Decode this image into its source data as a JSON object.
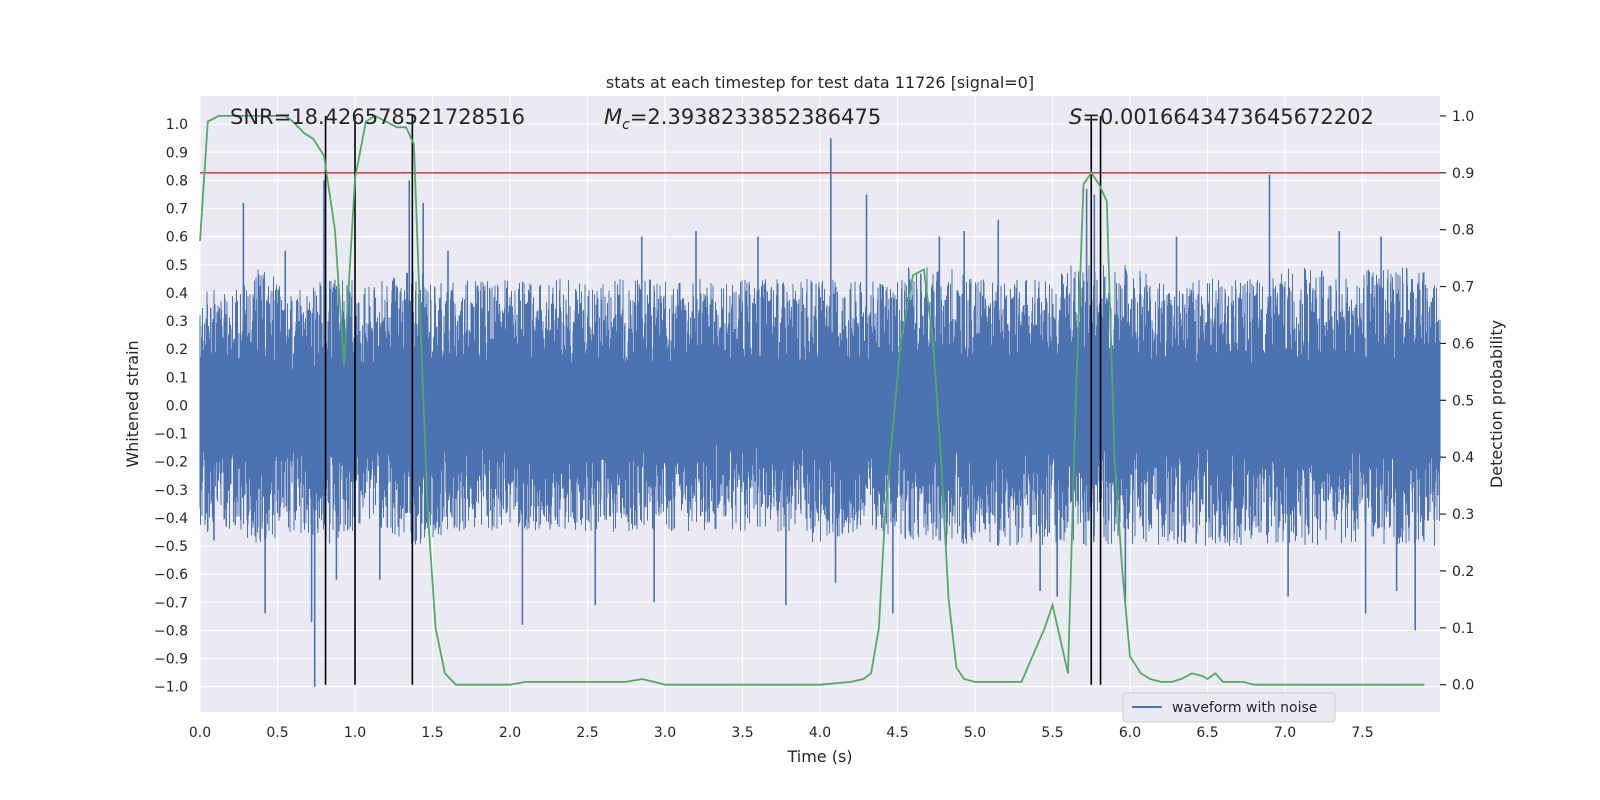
{
  "chart_data": {
    "type": "line",
    "title": "stats at each timestep for test data 11726 [signal=0]",
    "xlabel": "Time (s)",
    "ylabel": "Whitened strain",
    "ylabel_right": "Detection probability",
    "xlim": [
      0.0,
      8.0
    ],
    "ylim": [
      -1.09,
      1.1
    ],
    "ylim_right": [
      -0.048,
      1.035
    ],
    "x_ticks": [
      "0.0",
      "0.5",
      "1.0",
      "1.5",
      "2.0",
      "2.5",
      "3.0",
      "3.5",
      "4.0",
      "4.5",
      "5.0",
      "5.5",
      "6.0",
      "6.5",
      "7.0",
      "7.5"
    ],
    "y_ticks": [
      "1.0",
      "0.9",
      "0.8",
      "0.7",
      "0.6",
      "0.5",
      "0.4",
      "0.3",
      "0.2",
      "0.1",
      "0.0",
      "-0.1",
      "-0.2",
      "-0.3",
      "-0.4",
      "-0.5",
      "-0.6",
      "-0.7",
      "-0.8",
      "-0.9",
      "-1.0"
    ],
    "y_ticks_right": [
      "0.0",
      "0.1",
      "0.2",
      "0.3",
      "0.4",
      "0.5",
      "0.6",
      "0.7",
      "0.8",
      "0.9",
      "1.0"
    ],
    "grid": true,
    "legend_position": "bottom-right",
    "annotations": [
      {
        "text": "SNR=18.426578521728516"
      },
      {
        "text": "M_c=2.3938233852386475"
      },
      {
        "text": "S=0.0016643473645672202"
      }
    ],
    "threshold_right": 0.9,
    "vertical_lines_x": [
      0.81,
      1.0,
      1.37,
      5.75,
      5.81
    ],
    "series": [
      {
        "name": "waveform with noise",
        "axis": "left",
        "color": "#4c72b0",
        "envelope_hi_x": [
          0.0,
          0.2,
          0.4,
          0.6,
          0.8,
          1.0,
          1.2,
          1.4,
          1.6,
          1.8,
          2.0,
          2.2,
          2.4,
          2.6,
          2.8,
          3.0,
          3.2,
          3.4,
          3.6,
          3.8,
          4.0,
          4.2,
          4.4,
          4.6,
          4.8,
          5.0,
          5.2,
          5.4,
          5.6,
          5.8,
          6.0,
          6.2,
          6.4,
          6.6,
          6.8,
          7.0,
          7.2,
          7.4,
          7.6,
          7.8,
          8.0
        ],
        "envelope_hi_y": [
          0.45,
          0.4,
          0.5,
          0.4,
          0.45,
          0.45,
          0.45,
          0.5,
          0.45,
          0.45,
          0.45,
          0.45,
          0.45,
          0.45,
          0.45,
          0.45,
          0.45,
          0.45,
          0.45,
          0.45,
          0.45,
          0.45,
          0.45,
          0.5,
          0.5,
          0.45,
          0.45,
          0.45,
          0.5,
          0.5,
          0.5,
          0.45,
          0.45,
          0.45,
          0.45,
          0.5,
          0.5,
          0.45,
          0.5,
          0.5,
          0.45
        ],
        "envelope_lo_y": [
          -0.45,
          -0.45,
          -0.5,
          -0.45,
          -0.5,
          -0.45,
          -0.45,
          -0.5,
          -0.45,
          -0.45,
          -0.45,
          -0.45,
          -0.45,
          -0.45,
          -0.45,
          -0.45,
          -0.45,
          -0.45,
          -0.45,
          -0.45,
          -0.5,
          -0.45,
          -0.45,
          -0.5,
          -0.5,
          -0.5,
          -0.5,
          -0.5,
          -0.5,
          -0.5,
          -0.5,
          -0.5,
          -0.5,
          -0.5,
          -0.5,
          -0.5,
          -0.5,
          -0.5,
          -0.5,
          -0.5,
          -0.5
        ],
        "spikes_x": [
          0.09,
          0.28,
          0.42,
          0.55,
          0.72,
          0.74,
          0.8,
          0.88,
          1.16,
          1.35,
          1.44,
          1.6,
          2.08,
          2.55,
          2.85,
          2.93,
          3.2,
          3.6,
          3.78,
          4.07,
          4.1,
          4.3,
          4.47,
          4.77,
          4.93,
          5.15,
          5.42,
          5.53,
          5.72,
          5.77,
          5.97,
          6.3,
          6.9,
          7.02,
          7.35,
          7.52,
          7.62,
          7.72,
          7.84
        ],
        "spikes_y": [
          -0.48,
          0.72,
          -0.74,
          0.55,
          -0.77,
          -1.0,
          0.8,
          -0.62,
          -0.62,
          0.8,
          0.72,
          0.55,
          -0.78,
          -0.71,
          0.6,
          -0.7,
          0.62,
          0.6,
          -0.71,
          0.95,
          -0.63,
          0.75,
          -0.74,
          0.6,
          0.62,
          0.66,
          -0.66,
          -0.68,
          0.77,
          0.75,
          -0.7,
          0.6,
          0.82,
          -0.68,
          0.62,
          -0.74,
          0.6,
          -0.66,
          -0.8
        ]
      },
      {
        "name": "",
        "axis": "right",
        "color": "#55a868",
        "x": [
          0.0,
          0.05,
          0.12,
          0.2,
          0.3,
          0.4,
          0.5,
          0.55,
          0.6,
          0.67,
          0.73,
          0.8,
          0.87,
          0.93,
          1.0,
          1.07,
          1.13,
          1.2,
          1.27,
          1.33,
          1.38,
          1.42,
          1.47,
          1.52,
          1.58,
          1.65,
          1.75,
          1.9,
          2.0,
          2.1,
          2.2,
          2.3,
          2.5,
          2.6,
          2.75,
          2.85,
          2.93,
          3.0,
          3.2,
          3.4,
          3.5,
          3.8,
          4.0,
          4.2,
          4.28,
          4.33,
          4.38,
          4.42,
          4.47,
          4.52,
          4.6,
          4.67,
          4.73,
          4.78,
          4.83,
          4.88,
          4.93,
          5.0,
          5.07,
          5.15,
          5.3,
          5.45,
          5.5,
          5.55,
          5.6,
          5.65,
          5.7,
          5.75,
          5.8,
          5.85,
          5.9,
          5.95,
          6.0,
          6.07,
          6.13,
          6.2,
          6.27,
          6.33,
          6.4,
          6.47,
          6.5,
          6.55,
          6.6,
          6.67,
          6.73,
          6.8,
          6.87,
          6.93,
          7.0,
          7.2,
          7.5,
          7.7,
          7.9
        ],
        "y": [
          0.78,
          0.99,
          1.0,
          1.0,
          1.0,
          1.0,
          1.0,
          1.0,
          0.99,
          0.97,
          0.96,
          0.93,
          0.8,
          0.56,
          0.89,
          0.99,
          1.0,
          0.99,
          0.98,
          0.98,
          0.95,
          0.65,
          0.3,
          0.1,
          0.02,
          0.0,
          0.0,
          0.0,
          0.0,
          0.005,
          0.005,
          0.005,
          0.005,
          0.005,
          0.005,
          0.01,
          0.005,
          0.0,
          0.0,
          0.0,
          0.0,
          0.0,
          0.0,
          0.005,
          0.01,
          0.02,
          0.1,
          0.3,
          0.45,
          0.6,
          0.72,
          0.73,
          0.6,
          0.4,
          0.15,
          0.03,
          0.01,
          0.005,
          0.005,
          0.005,
          0.005,
          0.1,
          0.14,
          0.08,
          0.02,
          0.5,
          0.88,
          0.9,
          0.88,
          0.85,
          0.4,
          0.2,
          0.05,
          0.02,
          0.01,
          0.005,
          0.005,
          0.01,
          0.02,
          0.015,
          0.01,
          0.02,
          0.005,
          0.005,
          0.005,
          0.0,
          0.0,
          0.0,
          0.0,
          0.0,
          0.0,
          0.0,
          0.0
        ]
      }
    ]
  }
}
